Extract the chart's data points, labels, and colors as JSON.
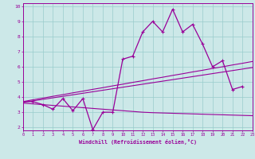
{
  "xlabel": "Windchill (Refroidissement éolien,°C)",
  "x": [
    0,
    1,
    2,
    3,
    4,
    5,
    6,
    7,
    8,
    9,
    10,
    11,
    12,
    13,
    14,
    15,
    16,
    17,
    18,
    19,
    20,
    21,
    22,
    23
  ],
  "y_main": [
    3.7,
    3.7,
    3.5,
    3.2,
    3.9,
    3.1,
    3.9,
    1.85,
    3.0,
    3.0,
    6.5,
    6.7,
    8.3,
    9.0,
    8.3,
    9.8,
    8.3,
    8.8,
    7.5,
    6.0,
    6.4,
    4.5,
    4.7,
    null
  ],
  "y_trend_upper": [
    3.7,
    3.82,
    3.93,
    4.05,
    4.16,
    4.28,
    4.39,
    4.51,
    4.62,
    4.74,
    4.85,
    4.97,
    5.08,
    5.2,
    5.31,
    5.43,
    5.54,
    5.66,
    5.77,
    5.89,
    6.0,
    6.12,
    6.23,
    6.35
  ],
  "y_trend_middle": [
    3.65,
    3.75,
    3.85,
    3.95,
    4.05,
    4.15,
    4.25,
    4.35,
    4.45,
    4.55,
    4.65,
    4.75,
    4.85,
    4.95,
    5.05,
    5.15,
    5.25,
    5.35,
    5.45,
    5.55,
    5.65,
    5.75,
    5.85,
    5.95
  ],
  "y_flat": [
    3.6,
    3.55,
    3.5,
    3.45,
    3.4,
    3.35,
    3.3,
    3.25,
    3.2,
    3.15,
    3.1,
    3.05,
    3.0,
    2.97,
    2.95,
    2.93,
    2.91,
    2.89,
    2.87,
    2.85,
    2.83,
    2.81,
    2.79,
    2.77
  ],
  "line_color": "#990099",
  "bg_color": "#cce8e8",
  "grid_color": "#99cccc",
  "ylim": [
    1.8,
    10.2
  ],
  "xlim": [
    0,
    23
  ]
}
